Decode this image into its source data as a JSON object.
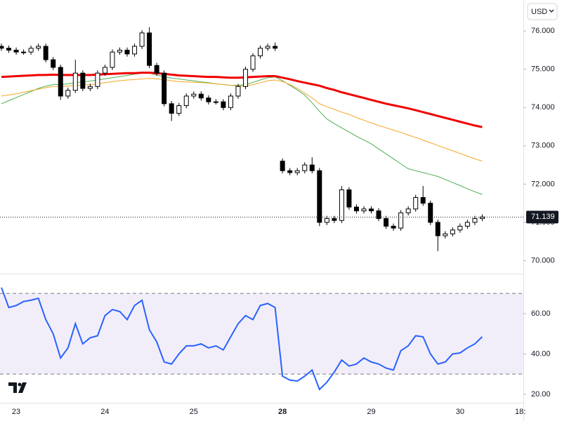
{
  "chart_data": {
    "type": "candlestick",
    "currency": "USD",
    "categories": [
      null,
      null,
      "23",
      null,
      null,
      null,
      null,
      null,
      null,
      null,
      null,
      null,
      null,
      null,
      "24",
      null,
      null,
      null,
      null,
      null,
      null,
      null,
      null,
      null,
      null,
      null,
      "25",
      null,
      null,
      null,
      null,
      null,
      null,
      null,
      null,
      null,
      null,
      null,
      "28",
      null,
      null,
      null,
      null,
      null,
      null,
      null,
      null,
      null,
      null,
      null,
      "29",
      null,
      null,
      null,
      null,
      null,
      null,
      null,
      null,
      null,
      null,
      null,
      "30",
      null,
      null,
      null
    ],
    "next_label": "18:",
    "open": [
      75.6,
      75.55,
      75.5,
      75.45,
      75.45,
      75.55,
      75.6,
      75.25,
      75.05,
      74.3,
      74.45,
      74.9,
      74.5,
      74.55,
      74.9,
      75.05,
      75.45,
      75.5,
      75.4,
      75.6,
      75.95,
      75.1,
      74.9,
      74.1,
      73.85,
      74.05,
      74.3,
      74.35,
      74.25,
      74.15,
      74.15,
      74.0,
      74.3,
      74.55,
      75.0,
      75.35,
      75.55,
      75.6,
      72.6,
      72.35,
      72.3,
      72.35,
      72.5,
      72.35,
      71.0,
      71.1,
      71.05,
      71.85,
      71.4,
      71.3,
      71.35,
      71.3,
      71.1,
      70.9,
      70.85,
      71.25,
      71.35,
      71.65,
      71.5,
      71.0,
      70.65,
      70.7,
      70.8,
      70.9,
      71.0,
      71.1
    ],
    "high": [
      75.67,
      75.62,
      75.57,
      75.52,
      75.62,
      75.67,
      75.67,
      75.32,
      75.12,
      74.52,
      75.25,
      74.97,
      74.62,
      74.97,
      75.12,
      75.52,
      75.57,
      75.57,
      75.67,
      76.02,
      76.1,
      75.17,
      74.97,
      74.17,
      74.12,
      74.37,
      74.42,
      74.42,
      74.32,
      74.22,
      74.22,
      74.37,
      74.62,
      75.07,
      75.42,
      75.62,
      75.67,
      75.7,
      72.67,
      72.42,
      72.42,
      72.57,
      72.7,
      72.42,
      71.17,
      71.17,
      71.95,
      71.92,
      71.47,
      71.42,
      71.42,
      71.37,
      71.17,
      70.97,
      71.32,
      71.42,
      71.72,
      71.95,
      71.57,
      71.07,
      70.77,
      70.87,
      70.97,
      71.07,
      71.17,
      71.21
    ],
    "low": [
      75.48,
      75.43,
      75.38,
      75.38,
      75.38,
      75.48,
      75.18,
      74.98,
      74.2,
      74.23,
      74.38,
      74.43,
      74.43,
      74.48,
      74.83,
      74.98,
      75.38,
      75.33,
      75.33,
      75.53,
      75.03,
      74.83,
      74.03,
      73.65,
      73.78,
      73.98,
      74.23,
      74.18,
      74.08,
      74.08,
      73.93,
      73.93,
      74.23,
      74.48,
      74.93,
      75.28,
      75.48,
      75.48,
      72.28,
      72.23,
      72.23,
      72.28,
      72.28,
      70.9,
      70.93,
      70.98,
      70.98,
      71.33,
      71.23,
      71.23,
      71.23,
      71.03,
      70.83,
      70.78,
      70.78,
      71.18,
      71.28,
      71.43,
      70.93,
      70.25,
      70.58,
      70.63,
      70.73,
      70.83,
      70.93,
      71.03
    ],
    "close": [
      75.55,
      75.5,
      75.45,
      75.45,
      75.55,
      75.6,
      75.25,
      75.05,
      74.3,
      74.45,
      74.9,
      74.5,
      74.55,
      74.9,
      75.05,
      75.45,
      75.5,
      75.4,
      75.6,
      75.95,
      75.1,
      74.9,
      74.1,
      73.85,
      74.05,
      74.3,
      74.35,
      74.25,
      74.15,
      74.15,
      74.0,
      74.3,
      74.55,
      75.0,
      75.35,
      75.55,
      75.6,
      75.55,
      72.35,
      72.3,
      72.35,
      72.5,
      72.35,
      71.0,
      71.1,
      71.05,
      71.85,
      71.4,
      71.3,
      71.35,
      71.3,
      71.1,
      70.9,
      70.85,
      71.25,
      71.35,
      71.65,
      71.5,
      71.0,
      70.65,
      70.7,
      70.8,
      70.9,
      71.0,
      71.1,
      71.14
    ],
    "up_color": "#ffffff",
    "down_color": "#000000",
    "outline_color": "#000000",
    "series": [
      {
        "color": "#4caf50",
        "width": 1,
        "values": [
          74.1,
          74.18,
          74.26,
          74.34,
          74.42,
          74.5,
          74.56,
          74.6,
          74.6,
          74.62,
          74.65,
          74.67,
          74.69,
          74.72,
          74.75,
          74.78,
          74.81,
          74.84,
          74.87,
          74.9,
          74.9,
          74.85,
          74.8,
          74.77,
          74.75,
          74.72,
          74.7,
          74.67,
          74.65,
          74.62,
          74.6,
          74.58,
          74.58,
          74.6,
          74.66,
          74.72,
          74.78,
          74.8,
          74.7,
          74.58,
          74.46,
          74.33,
          74.12,
          73.9,
          73.7,
          73.58,
          73.47,
          73.36,
          73.25,
          73.15,
          73.05,
          72.92,
          72.79,
          72.66,
          72.53,
          72.4,
          72.35,
          72.3,
          72.25,
          72.2,
          72.12,
          72.04,
          71.96,
          71.88,
          71.8,
          71.73
        ]
      },
      {
        "color": "#f5a623",
        "width": 1,
        "values": [
          74.3,
          74.33,
          74.36,
          74.4,
          74.44,
          74.48,
          74.52,
          74.55,
          74.55,
          74.56,
          74.58,
          74.59,
          74.6,
          74.62,
          74.65,
          74.68,
          74.7,
          74.72,
          74.73,
          74.75,
          74.76,
          74.75,
          74.73,
          74.7,
          74.68,
          74.67,
          74.66,
          74.65,
          74.64,
          74.62,
          74.6,
          74.58,
          74.56,
          74.56,
          74.6,
          74.65,
          74.7,
          74.72,
          74.68,
          74.6,
          74.5,
          74.38,
          74.25,
          74.1,
          74.02,
          73.95,
          73.88,
          73.82,
          73.74,
          73.67,
          73.6,
          73.53,
          73.47,
          73.41,
          73.35,
          73.28,
          73.22,
          73.15,
          73.08,
          73.01,
          72.94,
          72.87,
          72.8,
          72.73,
          72.66,
          72.6
        ]
      },
      {
        "color": "#f00000",
        "width": 3,
        "values": [
          74.8,
          74.81,
          74.82,
          74.83,
          74.84,
          74.85,
          74.85,
          74.86,
          74.85,
          74.85,
          74.85,
          74.85,
          74.85,
          74.86,
          74.87,
          74.88,
          74.89,
          74.9,
          74.9,
          74.91,
          74.91,
          74.9,
          74.88,
          74.86,
          74.84,
          74.83,
          74.82,
          74.81,
          74.8,
          74.8,
          74.79,
          74.78,
          74.78,
          74.79,
          74.8,
          74.81,
          74.82,
          74.82,
          74.78,
          74.74,
          74.69,
          74.65,
          74.61,
          74.57,
          74.51,
          74.46,
          74.4,
          74.35,
          74.3,
          74.25,
          74.2,
          74.15,
          74.1,
          74.06,
          74.02,
          73.98,
          73.93,
          73.88,
          73.83,
          73.78,
          73.73,
          73.68,
          73.63,
          73.58,
          73.53,
          73.49
        ]
      }
    ],
    "ylim": [
      69.66,
      76.81
    ],
    "yticks": [
      {
        "value": 70,
        "label": "70.000"
      },
      {
        "value": 71,
        "label": "71.000"
      },
      {
        "value": 72,
        "label": "72.000"
      },
      {
        "value": 73,
        "label": "73.000"
      },
      {
        "value": 74,
        "label": "74.000"
      },
      {
        "value": 75,
        "label": "75.000"
      },
      {
        "value": 76,
        "label": "76.000"
      }
    ],
    "grid": false,
    "last_price": 71.139,
    "rsi": {
      "color": "#2962ff",
      "band": [
        70,
        30
      ],
      "band_color": "#7e57c2",
      "values": [
        72.9,
        63,
        64,
        66,
        66.6,
        67.6,
        57,
        50,
        38,
        43,
        55,
        45,
        48,
        49,
        59,
        62,
        61,
        57,
        64,
        66.6,
        52,
        46,
        36,
        35,
        40,
        44,
        44,
        45,
        43,
        44,
        42,
        48.5,
        55,
        59,
        57,
        64,
        65,
        63,
        29,
        27,
        26.6,
        29,
        32,
        22.4,
        26,
        31,
        37,
        34,
        35,
        38,
        36,
        35,
        33,
        32,
        41.6,
        44,
        49,
        48.5,
        40,
        35,
        36,
        40,
        40.5,
        43,
        45,
        48.5
      ],
      "ylim": [
        16.5,
        79.1
      ],
      "yticks": [
        {
          "value": 20,
          "label": "20.00"
        },
        {
          "value": 40,
          "label": "40.00"
        },
        {
          "value": 60,
          "label": "60.00"
        }
      ]
    }
  }
}
